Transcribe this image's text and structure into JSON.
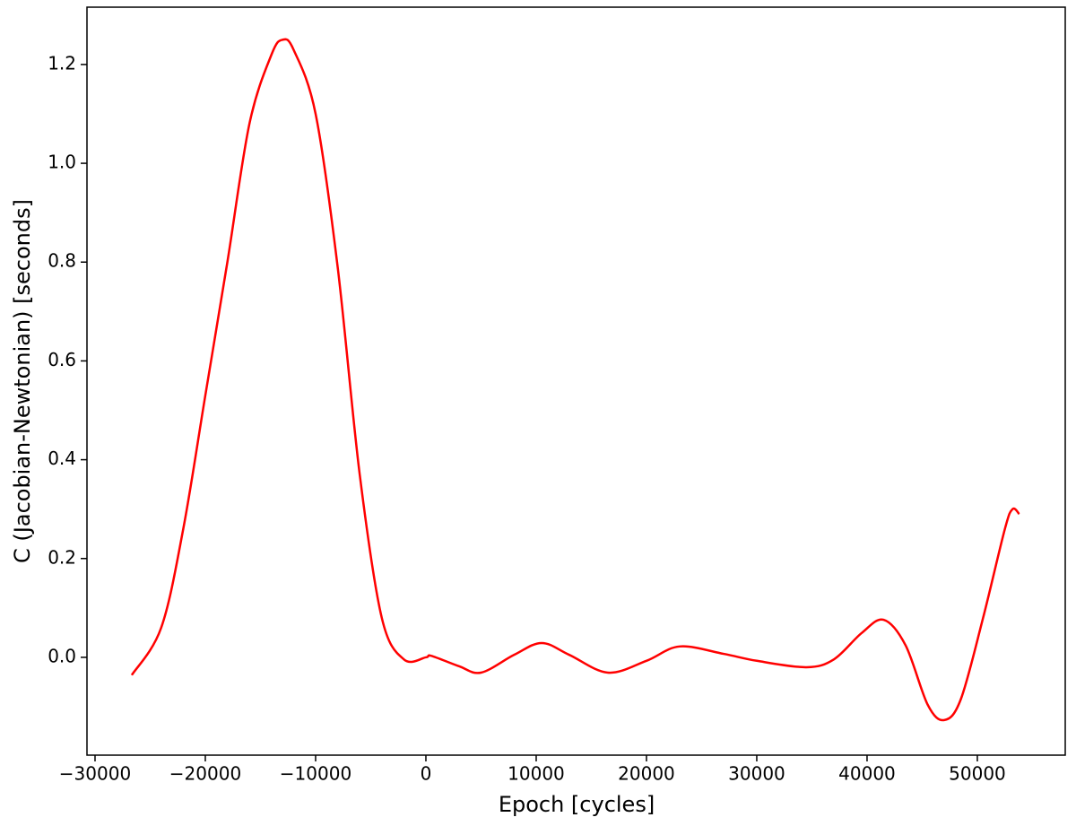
{
  "chart_data": {
    "type": "line",
    "xlabel": "Epoch [cycles]",
    "ylabel": "C (Jacobian-Newtonian) [seconds]",
    "xlim": [
      -30730,
      57970
    ],
    "ylim": [
      -0.198,
      1.316
    ],
    "xticks": [
      {
        "value": -30000,
        "label": "−30000"
      },
      {
        "value": -20000,
        "label": "−20000"
      },
      {
        "value": -10000,
        "label": "−10000"
      },
      0,
      10000,
      20000,
      30000,
      40000,
      50000
    ],
    "yticks": [
      {
        "value": 0,
        "label": "0.0"
      },
      0.2,
      0.4,
      0.6,
      0.8,
      {
        "value": 1,
        "label": "1.0"
      },
      1.2
    ],
    "series": [
      {
        "color": "#ff0000",
        "x": [
          -26670,
          -24000,
          -22000,
          -20000,
          -18000,
          -16000,
          -14000,
          -13000,
          -12000,
          -10000,
          -8000,
          -6000,
          -4000,
          -2000,
          0,
          500,
          3000,
          5000,
          8000,
          10500,
          13000,
          16500,
          20000,
          23000,
          27000,
          30000,
          34500,
          37000,
          39500,
          41500,
          43500,
          45500,
          47000,
          48500,
          50500,
          52500,
          53200,
          53800
        ],
        "values": [
          -0.036,
          0.06,
          0.26,
          0.53,
          0.8,
          1.08,
          1.22,
          1.25,
          1.23,
          1.1,
          0.79,
          0.37,
          0.08,
          -0.004,
          0.0,
          0.003,
          -0.018,
          -0.031,
          0.005,
          0.029,
          0.005,
          -0.031,
          -0.007,
          0.022,
          0.007,
          -0.007,
          -0.02,
          -0.004,
          0.049,
          0.076,
          0.024,
          -0.096,
          -0.127,
          -0.085,
          0.078,
          0.26,
          0.3,
          0.29
        ]
      }
    ]
  }
}
